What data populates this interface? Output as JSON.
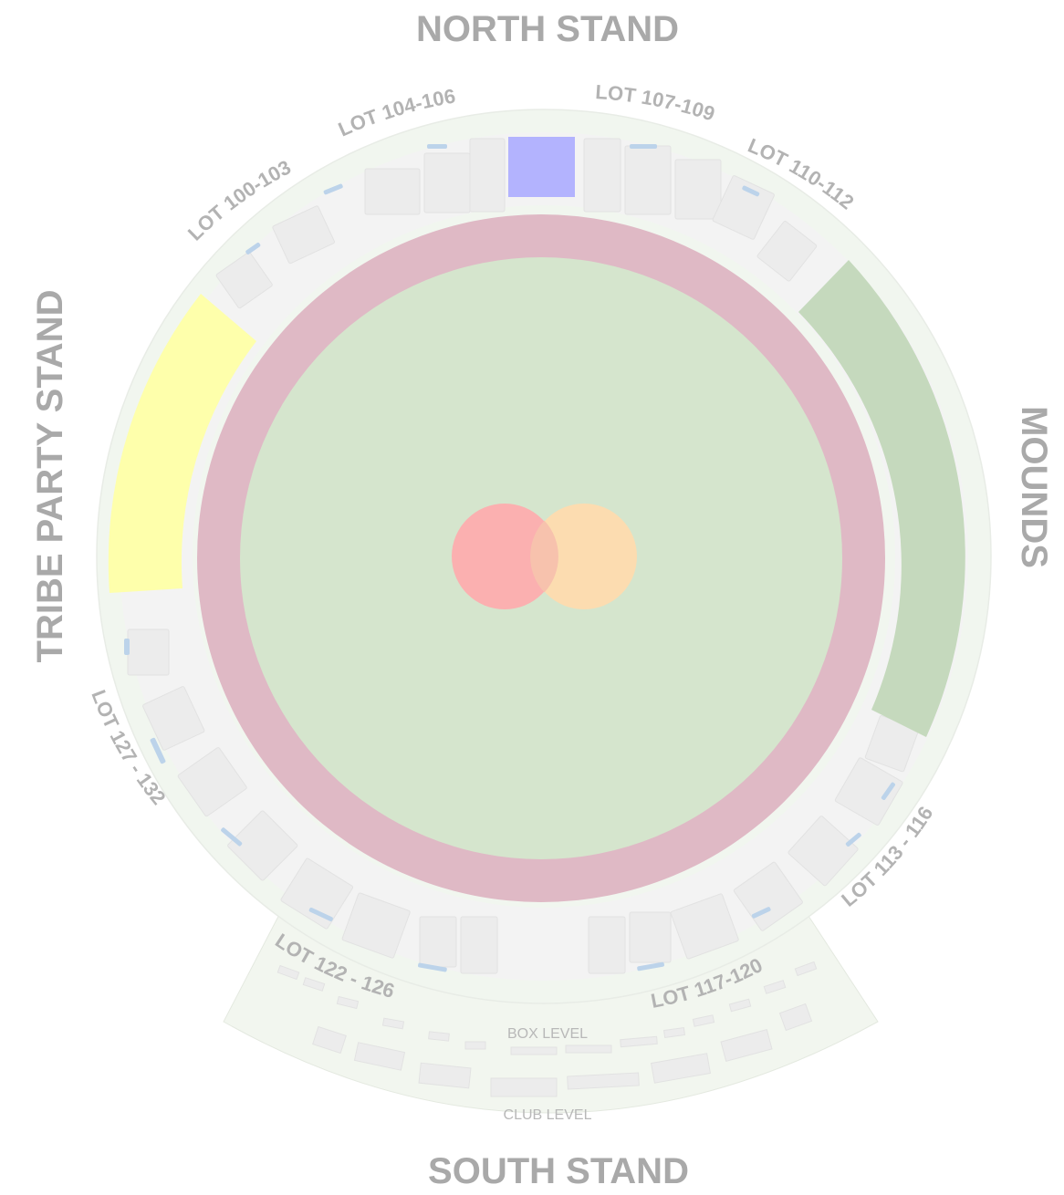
{
  "map": {
    "stands": {
      "north": "NORTH STAND",
      "south": "SOUTH STAND",
      "west": "TRIBE PARTY STAND",
      "east": "MOUNDS"
    },
    "lots": {
      "lot_100_103": "LOT 100-103",
      "lot_104_106": "LOT 104-106",
      "lot_107_109": "LOT 107-109",
      "lot_110_112": "LOT 110-112",
      "lot_113_116": "LOT 113 - 116",
      "lot_117_120": "LOT 117-120",
      "lot_122_126": "LOT 122 - 126",
      "lot_127_132": "LOT 127 - 132"
    },
    "levels": {
      "box": "BOX LEVEL",
      "club": "CLUB LEVEL"
    },
    "colors": {
      "outer_ring": "#f1f6ef",
      "seating_band": "#f2f2f2",
      "boundary_rope": "#dfb9c5",
      "field": "#d5e5cd",
      "pitch_left": "#fbb0b0",
      "pitch_right": "#fcdcb0",
      "tribe_party_stand": "#feffab",
      "mounds": "#c5d9bd",
      "north_highlight": "#b3b3fe",
      "south_pavilion": "#f2f6ef"
    }
  }
}
